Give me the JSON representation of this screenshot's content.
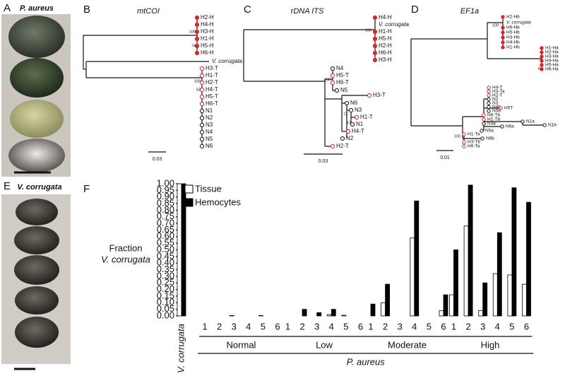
{
  "panels": {
    "A": {
      "letter": "A",
      "title": "P. aureus"
    },
    "B": {
      "letter": "B",
      "title": "mtCOI",
      "leaves": [
        "H2-H",
        "H4-H",
        "H3-H",
        "H1-H",
        "H5-H",
        "H6-H",
        "V. corrugata",
        "H3-T",
        "H1-T",
        "H2-T",
        "H4-T",
        "H5-T",
        "H6-T",
        "N1",
        "N2",
        "N3",
        "N4",
        "N5",
        "N6"
      ],
      "bootstrap": [
        100,
        74,
        100,
        52
      ],
      "scale": 0.03
    },
    "C": {
      "letter": "C",
      "title": "rDNA ITS",
      "leaves": [
        "H4-H",
        "V. corrugata",
        "H1-H",
        "H5-H",
        "H2-H",
        "H6-H",
        "H3-H",
        "N4",
        "H5-T",
        "H6-T",
        "N5",
        "H3-T",
        "N6",
        "N3",
        "H1-T",
        "N1",
        "H4-T",
        "N2",
        "H2-T"
      ],
      "bootstrap": [
        100,
        100,
        77,
        57
      ],
      "scale": 0.03
    },
    "D": {
      "letter": "D",
      "title": "EF1a",
      "leaves": [
        "H2-Hb",
        "V. corrugata",
        "H6-Hb",
        "H5-Hb",
        "H3-Hb",
        "H4-Hb",
        "H1-Hb",
        "H1-Ha",
        "H2-Ha",
        "H3-Ha",
        "H4-Ha",
        "H5-Ha",
        "H6-Ha",
        "H4-T",
        "H3-Ta",
        "H2-T",
        "N2",
        "N3",
        "N4b",
        "N5b",
        "H5T",
        "N1a",
        "N1b",
        "H6-Tb",
        "H1-Tb",
        "N4a",
        "N5a",
        "N6a",
        "H1-Ta",
        "N6b",
        "H3-Tb",
        "H6-Ta"
      ],
      "bootstrap": [
        100,
        6,
        100
      ],
      "scale": 0.01
    },
    "E": {
      "letter": "E",
      "title": "V. corrugata"
    }
  },
  "chart_data": {
    "type": "bar",
    "panel_label": "F",
    "y_label": [
      "Fraction",
      "V. corrugata"
    ],
    "categories": [
      "V. corrugata",
      "1",
      "2",
      "3",
      "4",
      "5",
      "6",
      "1",
      "2",
      "3",
      "4",
      "5",
      "6",
      "1",
      "2",
      "3",
      "4",
      "5",
      "6",
      "1",
      "2",
      "3",
      "4",
      "5",
      "6"
    ],
    "groups": [
      "Normal",
      "Low",
      "Moderate",
      "High"
    ],
    "group_title": "P. aureus",
    "series": [
      {
        "name": "Tissue",
        "color": "#ffffff",
        "values": [
          1.0,
          0,
          0,
          0.003,
          0,
          0.003,
          0,
          0,
          0,
          0,
          0.01,
          0.005,
          0,
          0,
          0.1,
          0,
          0.59,
          0,
          0.04,
          0.16,
          0.68,
          0.04,
          0.32,
          0.31,
          0.24
        ]
      },
      {
        "name": "Hemocytes",
        "color": "#000000",
        "values": [
          1.0,
          0,
          0,
          0,
          0,
          0,
          0,
          0,
          0.05,
          0.025,
          0.05,
          0,
          0,
          0.09,
          0.24,
          0,
          0.87,
          0,
          0.16,
          0.5,
          0.99,
          0.25,
          0.63,
          0.97,
          0.86
        ]
      }
    ],
    "ylim": [
      0,
      1
    ],
    "yticks": [
      {
        "value": 0,
        "label": "0.00"
      },
      {
        "value": 0.05,
        "label": "0.05"
      },
      {
        "value": 0.1,
        "label": "0.10"
      },
      {
        "value": 0.15,
        "label": "0.15"
      },
      {
        "value": 0.2,
        "label": "0.20"
      },
      {
        "value": 0.25,
        "label": "0.25"
      },
      {
        "value": 0.3,
        "label": "0.30"
      },
      {
        "value": 0.35,
        "label": "0.35"
      },
      {
        "value": 0.4,
        "label": "0.40"
      },
      {
        "value": 0.45,
        "label": "0.45"
      },
      {
        "value": 0.5,
        "label": "0.50"
      },
      {
        "value": 0.55,
        "label": "0.55"
      },
      {
        "value": 0.6,
        "label": "0.60"
      },
      {
        "value": 0.65,
        "label": "0.65"
      },
      {
        "value": 0.7,
        "label": "0.70"
      },
      {
        "value": 0.75,
        "label": "0.75"
      },
      {
        "value": 0.8,
        "label": "0.80"
      },
      {
        "value": 0.85,
        "label": "0.85"
      },
      {
        "value": 0.9,
        "label": "0.90"
      },
      {
        "value": 0.95,
        "label": "0.95"
      },
      {
        "value": 1,
        "label": "1.00"
      }
    ],
    "legend": "top-left"
  }
}
